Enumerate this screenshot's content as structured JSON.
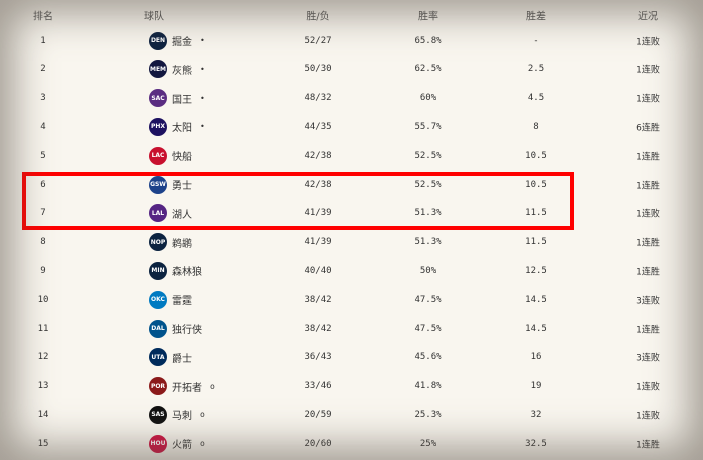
{
  "headers": {
    "rank": "排名",
    "team": "球队",
    "wl": "胜/负",
    "pct": "胜率",
    "gb": "胜差",
    "streak": "近况"
  },
  "rows": [
    {
      "rank": "1",
      "logo": "DEN",
      "color": "#0e2240",
      "team": "掘金",
      "mark": "•",
      "wl": "52/27",
      "pct": "65.8%",
      "gb": "-",
      "streak": "1连败"
    },
    {
      "rank": "2",
      "logo": "MEM",
      "color": "#12173f",
      "team": "灰熊",
      "mark": "•",
      "wl": "50/30",
      "pct": "62.5%",
      "gb": "2.5",
      "streak": "1连败"
    },
    {
      "rank": "3",
      "logo": "SAC",
      "color": "#5a2d81",
      "team": "国王",
      "mark": "•",
      "wl": "48/32",
      "pct": "60%",
      "gb": "4.5",
      "streak": "1连败"
    },
    {
      "rank": "4",
      "logo": "PHX",
      "color": "#1d1160",
      "team": "太阳",
      "mark": "•",
      "wl": "44/35",
      "pct": "55.7%",
      "gb": "8",
      "streak": "6连胜"
    },
    {
      "rank": "5",
      "logo": "LAC",
      "color": "#c8102e",
      "team": "快船",
      "mark": "",
      "wl": "42/38",
      "pct": "52.5%",
      "gb": "10.5",
      "streak": "1连胜"
    },
    {
      "rank": "6",
      "logo": "GSW",
      "color": "#1d428a",
      "team": "勇士",
      "mark": "",
      "wl": "42/38",
      "pct": "52.5%",
      "gb": "10.5",
      "streak": "1连胜"
    },
    {
      "rank": "7",
      "logo": "LAL",
      "color": "#552583",
      "team": "湖人",
      "mark": "",
      "wl": "41/39",
      "pct": "51.3%",
      "gb": "11.5",
      "streak": "1连败"
    },
    {
      "rank": "8",
      "logo": "NOP",
      "color": "#0c2340",
      "team": "鹈鹕",
      "mark": "",
      "wl": "41/39",
      "pct": "51.3%",
      "gb": "11.5",
      "streak": "1连胜"
    },
    {
      "rank": "9",
      "logo": "MIN",
      "color": "#0c2340",
      "team": "森林狼",
      "mark": "",
      "wl": "40/40",
      "pct": "50%",
      "gb": "12.5",
      "streak": "1连胜"
    },
    {
      "rank": "10",
      "logo": "OKC",
      "color": "#007ac1",
      "team": "雷霆",
      "mark": "",
      "wl": "38/42",
      "pct": "47.5%",
      "gb": "14.5",
      "streak": "3连败"
    },
    {
      "rank": "11",
      "logo": "DAL",
      "color": "#00538c",
      "team": "独行侠",
      "mark": "",
      "wl": "38/42",
      "pct": "47.5%",
      "gb": "14.5",
      "streak": "1连胜"
    },
    {
      "rank": "12",
      "logo": "UTA",
      "color": "#002b5c",
      "team": "爵士",
      "mark": "",
      "wl": "36/43",
      "pct": "45.6%",
      "gb": "16",
      "streak": "3连败"
    },
    {
      "rank": "13",
      "logo": "POR",
      "color": "#8b1a1a",
      "team": "开拓者",
      "mark": "o",
      "wl": "33/46",
      "pct": "41.8%",
      "gb": "19",
      "streak": "1连败"
    },
    {
      "rank": "14",
      "logo": "SAS",
      "color": "#111111",
      "team": "马刺",
      "mark": "o",
      "wl": "20/59",
      "pct": "25.3%",
      "gb": "32",
      "streak": "1连败"
    },
    {
      "rank": "15",
      "logo": "HOU",
      "color": "#ce1141",
      "team": "火箭",
      "mark": "o",
      "wl": "20/60",
      "pct": "25%",
      "gb": "32.5",
      "streak": "1连胜"
    }
  ],
  "highlight_color": "#ff0000"
}
